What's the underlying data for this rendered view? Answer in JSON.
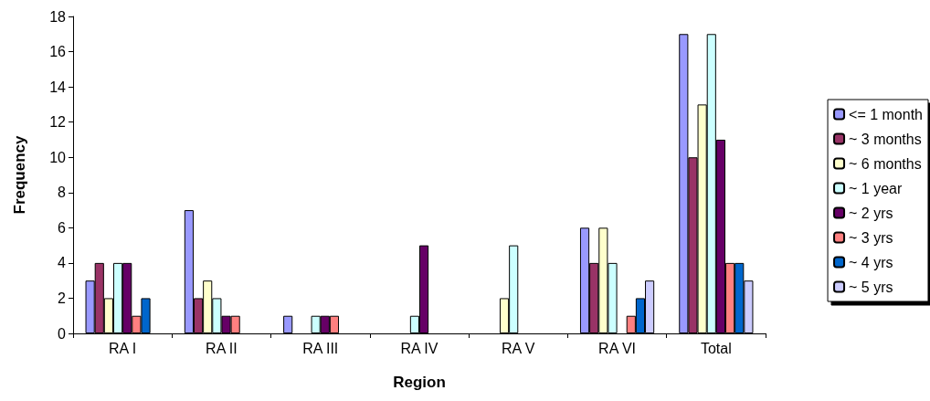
{
  "chart_data": {
    "type": "bar",
    "xlabel": "Region",
    "ylabel": "Frequency",
    "categories": [
      "RA I",
      "RA II",
      "RA III",
      "RA IV",
      "RA V",
      "RA VI",
      "Total"
    ],
    "series": [
      {
        "name": "<= 1 month",
        "color": "#9999ff",
        "values": [
          3,
          7,
          1,
          0,
          0,
          6,
          17
        ]
      },
      {
        "name": "~ 3 months",
        "color": "#993366",
        "values": [
          4,
          2,
          0,
          0,
          0,
          4,
          10
        ]
      },
      {
        "name": "~ 6 months",
        "color": "#ffffcc",
        "values": [
          2,
          3,
          0,
          0,
          2,
          6,
          13
        ]
      },
      {
        "name": "~ 1 year",
        "color": "#ccffff",
        "values": [
          4,
          2,
          1,
          1,
          5,
          4,
          17
        ]
      },
      {
        "name": "~ 2 yrs",
        "color": "#660066",
        "values": [
          4,
          1,
          1,
          5,
          0,
          0,
          11
        ]
      },
      {
        "name": "~ 3 yrs",
        "color": "#ff8080",
        "values": [
          1,
          1,
          1,
          0,
          0,
          1,
          4
        ]
      },
      {
        "name": "~ 4 yrs",
        "color": "#0066cc",
        "values": [
          2,
          0,
          0,
          0,
          0,
          2,
          4
        ]
      },
      {
        "name": "~ 5 yrs",
        "color": "#ccccff",
        "values": [
          0,
          0,
          0,
          0,
          0,
          3,
          3
        ]
      }
    ],
    "ylim": [
      0,
      18
    ],
    "yticks": [
      0,
      2,
      4,
      6,
      8,
      10,
      12,
      14,
      16,
      18
    ],
    "grid": false,
    "legend": "right"
  }
}
